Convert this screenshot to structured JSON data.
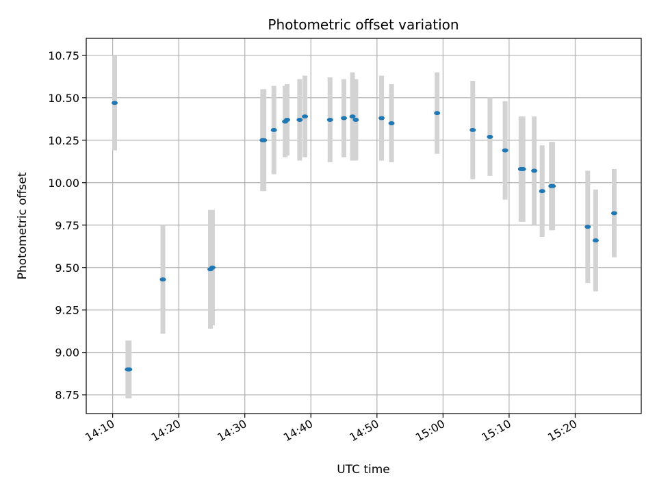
{
  "chart_data": {
    "type": "scatter",
    "title": "Photometric offset variation",
    "xlabel": "UTC time",
    "ylabel": "Photometric offset",
    "x_axis_kind": "time",
    "xlim": [
      "14:06",
      "15:30"
    ],
    "ylim": [
      8.64,
      10.85
    ],
    "grid": true,
    "x_tick_labels": [
      "14:10",
      "14:20",
      "14:30",
      "14:40",
      "14:50",
      "15:00",
      "15:10",
      "15:20"
    ],
    "y_tick_labels": [
      "8.75",
      "9.00",
      "9.25",
      "9.50",
      "9.75",
      "10.00",
      "10.25",
      "10.50",
      "10.75"
    ],
    "colors": {
      "points": "#1f77b4",
      "error_bars": "#d3d3d3",
      "grid": "#b0b0b0"
    },
    "points": [
      {
        "x": "14:10:18",
        "y": 10.47,
        "err": 0.28
      },
      {
        "x": "14:12:18",
        "y": 8.9,
        "err": 0.17
      },
      {
        "x": "14:12:30",
        "y": 8.9,
        "err": 0.17
      },
      {
        "x": "14:17:36",
        "y": 9.43,
        "err": 0.32
      },
      {
        "x": "14:24:48",
        "y": 9.49,
        "err": 0.35
      },
      {
        "x": "14:25:06",
        "y": 9.5,
        "err": 0.34
      },
      {
        "x": "14:32:42",
        "y": 10.25,
        "err": 0.3
      },
      {
        "x": "14:32:54",
        "y": 10.25,
        "err": 0.3
      },
      {
        "x": "14:34:24",
        "y": 10.31,
        "err": 0.26
      },
      {
        "x": "14:36:06",
        "y": 10.36,
        "err": 0.21
      },
      {
        "x": "14:36:24",
        "y": 10.37,
        "err": 0.21
      },
      {
        "x": "14:38:18",
        "y": 10.37,
        "err": 0.24
      },
      {
        "x": "14:39:06",
        "y": 10.39,
        "err": 0.24
      },
      {
        "x": "14:42:54",
        "y": 10.37,
        "err": 0.25
      },
      {
        "x": "14:45:00",
        "y": 10.38,
        "err": 0.23
      },
      {
        "x": "14:46:18",
        "y": 10.39,
        "err": 0.26
      },
      {
        "x": "14:46:48",
        "y": 10.37,
        "err": 0.24
      },
      {
        "x": "14:50:42",
        "y": 10.38,
        "err": 0.25
      },
      {
        "x": "14:52:12",
        "y": 10.35,
        "err": 0.23
      },
      {
        "x": "14:59:06",
        "y": 10.41,
        "err": 0.24
      },
      {
        "x": "15:04:30",
        "y": 10.31,
        "err": 0.29
      },
      {
        "x": "15:07:06",
        "y": 10.27,
        "err": 0.23
      },
      {
        "x": "15:09:24",
        "y": 10.19,
        "err": 0.29
      },
      {
        "x": "15:11:48",
        "y": 10.08,
        "err": 0.31
      },
      {
        "x": "15:12:06",
        "y": 10.08,
        "err": 0.31
      },
      {
        "x": "15:13:48",
        "y": 10.07,
        "err": 0.32
      },
      {
        "x": "15:15:00",
        "y": 9.95,
        "err": 0.27
      },
      {
        "x": "15:16:24",
        "y": 9.98,
        "err": 0.26
      },
      {
        "x": "15:16:36",
        "y": 9.98,
        "err": 0.26
      },
      {
        "x": "15:21:54",
        "y": 9.74,
        "err": 0.33
      },
      {
        "x": "15:23:06",
        "y": 9.66,
        "err": 0.3
      },
      {
        "x": "15:25:54",
        "y": 9.82,
        "err": 0.26
      }
    ]
  }
}
